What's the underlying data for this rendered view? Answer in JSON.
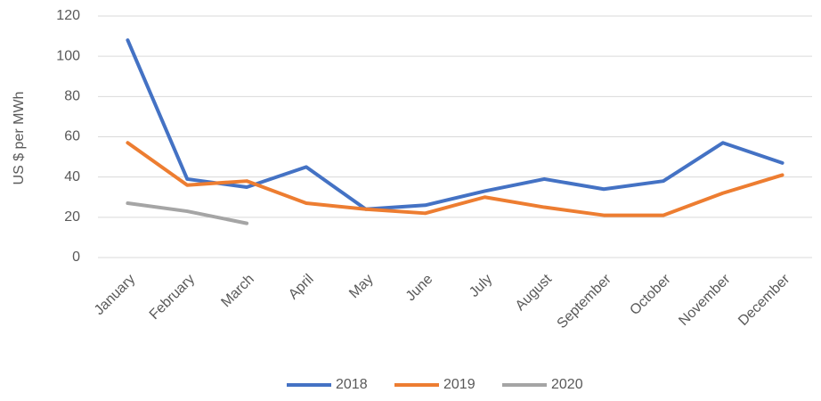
{
  "chart_data": {
    "type": "line",
    "ylabel": "US $ per MWh",
    "categories": [
      "January",
      "February",
      "March",
      "April",
      "May",
      "June",
      "July",
      "August",
      "September",
      "October",
      "November",
      "December"
    ],
    "series": [
      {
        "name": "2018",
        "color": "#4472c4",
        "values": [
          108,
          39,
          35,
          45,
          24,
          26,
          33,
          39,
          34,
          38,
          57,
          47
        ]
      },
      {
        "name": "2019",
        "color": "#ed7d31",
        "values": [
          57,
          36,
          38,
          27,
          24,
          22,
          30,
          25,
          21,
          21,
          32,
          41
        ]
      },
      {
        "name": "2020",
        "color": "#a5a5a5",
        "values": [
          27,
          23,
          17,
          null,
          null,
          null,
          null,
          null,
          null,
          null,
          null,
          null
        ]
      }
    ],
    "ylim": [
      0,
      120
    ],
    "yticks": [
      0,
      20,
      40,
      60,
      80,
      100,
      120
    ],
    "grid": true,
    "legend": "bottom"
  }
}
